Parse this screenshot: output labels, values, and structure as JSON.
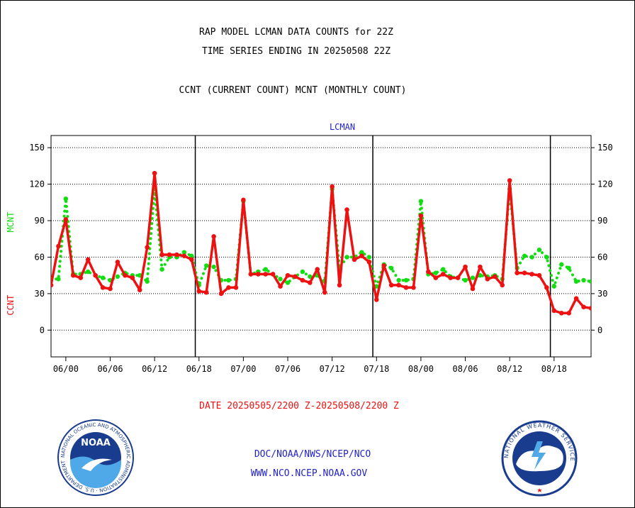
{
  "header": {
    "title_line1": "RAP MODEL LCMAN DATA COUNTS for 22Z",
    "title_line2": "TIME SERIES ENDING IN 20250508 22Z",
    "subtitle": "CCNT (CURRENT COUNT) MCNT (MONTHLY COUNT)"
  },
  "footer": {
    "date_range": "DATE 20250505/2200 Z-20250508/2200 Z",
    "org_line": "DOC/NOAA/NWS/NCEP/NCO",
    "url_line": "WWW.NCO.NCEP.NOAA.GOV"
  },
  "logos": {
    "noaa_text": "NOAA",
    "noaa_ring": "NATIONAL OCEANIC AND ATMOSPHERIC ADMINISTRATION · U.S. DEPARTMENT OF COMMERCE",
    "nws_ring": "NATIONAL WEATHER SERVICE"
  },
  "colors": {
    "ccnt": "#ee1111",
    "mcnt": "#11dd11",
    "date_text": "#ee1111",
    "footer_text": "#2222cc",
    "panel_label": "#2222cc"
  },
  "chart_data": {
    "type": "line",
    "panel_label": "LCMAN",
    "ylabel_ccnt": "CCNT",
    "ylabel_mcnt": "MCNT",
    "ylim": [
      -22,
      160
    ],
    "yticks": [
      0,
      30,
      60,
      90,
      120,
      150
    ],
    "ytick_labels": [
      "0",
      "30",
      "60",
      "90",
      "120",
      "150"
    ],
    "xtick_labels": [
      "06/00",
      "06/06",
      "06/12",
      "06/18",
      "07/00",
      "07/06",
      "07/12",
      "07/18",
      "08/00",
      "08/06",
      "08/12",
      "08/18"
    ],
    "xtick_hours": [
      6,
      12,
      18,
      24,
      30,
      36,
      42,
      48,
      54,
      60,
      66,
      72
    ],
    "x_range_hours": [
      4,
      77
    ],
    "day_boundaries_hours": [
      23.5,
      47.5,
      71.5
    ],
    "grid": true,
    "series": [
      {
        "name": "CCNT",
        "style": "solid",
        "x": [
          4,
          5,
          6,
          7,
          8,
          9,
          10,
          11,
          12,
          13,
          14,
          15,
          16,
          17,
          18,
          19,
          20,
          21,
          22,
          23,
          24,
          25,
          26,
          27,
          28,
          29,
          30,
          31,
          32,
          33,
          34,
          35,
          36,
          37,
          38,
          39,
          40,
          41,
          42,
          43,
          44,
          45,
          46,
          47,
          48,
          49,
          50,
          51,
          52,
          53,
          54,
          55,
          56,
          57,
          58,
          59,
          60,
          61,
          62,
          63,
          64,
          65,
          66,
          67,
          68,
          69,
          70,
          71,
          72,
          73,
          74,
          75,
          76,
          77
        ],
        "values": [
          37,
          69,
          91,
          45,
          43,
          58,
          45,
          35,
          34,
          56,
          45,
          43,
          33,
          68,
          129,
          62,
          62,
          62,
          61,
          58,
          32,
          31,
          77,
          30,
          35,
          35,
          107,
          46,
          46,
          46,
          46,
          36,
          45,
          44,
          41,
          39,
          50,
          31,
          118,
          37,
          99,
          58,
          61,
          56,
          25,
          53,
          37,
          37,
          35,
          35,
          94,
          48,
          43,
          46,
          43,
          43,
          52,
          34,
          52,
          42,
          44,
          37,
          123,
          47,
          47,
          46,
          45,
          35,
          16,
          14,
          14,
          26,
          19,
          18
        ]
      },
      {
        "name": "MCNT",
        "style": "dotted",
        "x": [
          4,
          5,
          6,
          7,
          8,
          9,
          10,
          11,
          12,
          13,
          14,
          15,
          16,
          17,
          18,
          19,
          20,
          21,
          22,
          23,
          24,
          25,
          26,
          27,
          28,
          29,
          30,
          31,
          32,
          33,
          34,
          35,
          36,
          37,
          38,
          39,
          40,
          41,
          42,
          43,
          44,
          45,
          46,
          47,
          48,
          49,
          50,
          51,
          52,
          53,
          54,
          55,
          56,
          57,
          58,
          59,
          60,
          61,
          62,
          63,
          64,
          65,
          66,
          67,
          68,
          69,
          70,
          71,
          72,
          73,
          74,
          75,
          76,
          77
        ],
        "values": [
          42,
          42,
          108,
          46,
          46,
          48,
          45,
          43,
          41,
          44,
          47,
          45,
          45,
          40,
          116,
          50,
          60,
          60,
          64,
          61,
          37,
          53,
          52,
          41,
          41,
          42,
          106,
          46,
          48,
          50,
          46,
          42,
          39,
          44,
          48,
          44,
          45,
          40,
          116,
          51,
          60,
          60,
          64,
          60,
          36,
          54,
          51,
          41,
          41,
          42,
          106,
          46,
          47,
          50,
          44,
          43,
          41,
          43,
          45,
          44,
          45,
          42,
          116,
          51,
          61,
          60,
          66,
          60,
          36,
          54,
          51,
          40,
          41,
          40
        ]
      }
    ]
  }
}
